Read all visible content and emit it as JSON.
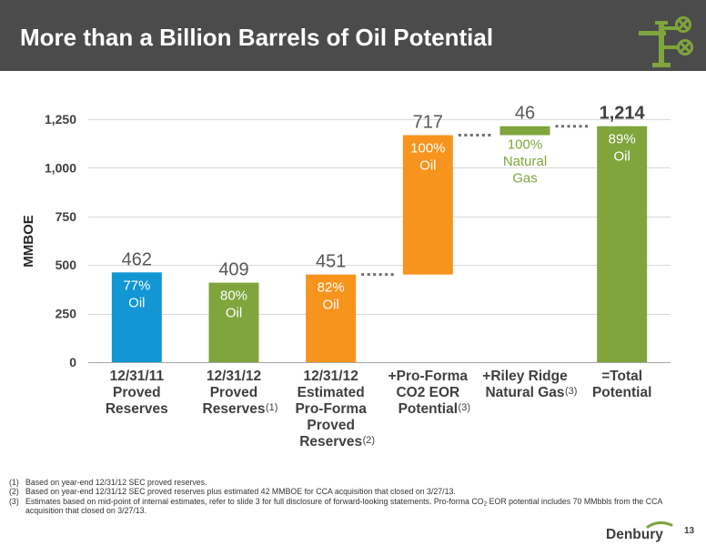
{
  "slide": {
    "title": "More than a Billion Barrels of Oil Potential",
    "header_icon": "pipeline-valve-icon",
    "logo_text": "Denbury",
    "page_number": "13",
    "colors": {
      "header_background": "#4b4b4b",
      "title_text": "#ffffff",
      "accent_green": "#7fa53c"
    }
  },
  "chart_data": {
    "type": "bar",
    "subtype": "waterfall",
    "ylabel": "MMBOE",
    "ylim": [
      0,
      1250
    ],
    "yticks": [
      0,
      250,
      500,
      750,
      1000,
      1250
    ],
    "ytick_labels": [
      "0",
      "250",
      "500",
      "750",
      "1,000",
      "1,250"
    ],
    "grid": true,
    "legend": "none",
    "categories": [
      {
        "lines": [
          "12/31/11",
          "Proved",
          "Reserves"
        ]
      },
      {
        "lines": [
          "12/31/12",
          "Proved",
          "Reserves"
        ],
        "note": "(1)"
      },
      {
        "lines": [
          "12/31/12",
          "Estimated",
          "Pro-Forma",
          "Proved",
          "Reserves"
        ],
        "note": "(2)"
      },
      {
        "lines": [
          "+Pro-Forma",
          "CO2 EOR",
          "Potential"
        ],
        "note": "(3)"
      },
      {
        "lines": [
          "+Riley Ridge",
          "Natural Gas"
        ],
        "note": "(3)"
      },
      {
        "lines": [
          "=Total",
          "Potential"
        ]
      }
    ],
    "values": [
      462,
      409,
      451,
      717,
      46,
      1214
    ],
    "value_labels": [
      "462",
      "409",
      "451",
      "717",
      "46",
      "1,214"
    ],
    "bar_kind": [
      "total",
      "total",
      "total",
      "increment",
      "increment",
      "total"
    ],
    "colors": [
      "#1296d4",
      "#7fa53c",
      "#f7941d",
      "#f7941d",
      "#7fa53c",
      "#7fa53c"
    ],
    "composition": [
      {
        "lines": [
          "77%",
          "Oil"
        ],
        "position": "inside"
      },
      {
        "lines": [
          "80%",
          "Oil"
        ],
        "position": "inside"
      },
      {
        "lines": [
          "82%",
          "Oil"
        ],
        "position": "inside"
      },
      {
        "lines": [
          "100%",
          "Oil"
        ],
        "position": "inside"
      },
      {
        "lines": [
          "100%",
          "Natural",
          "Gas"
        ],
        "position": "below"
      },
      {
        "lines": [
          "89%",
          "Oil"
        ],
        "position": "inside"
      }
    ],
    "emphasized": [
      false,
      false,
      false,
      false,
      false,
      true
    ]
  },
  "footnotes": [
    {
      "marker": "(1)",
      "text": "Based on year-end 12/31/12 SEC proved reserves."
    },
    {
      "marker": "(2)",
      "text": "Based on year-end 12/31/12 SEC proved reserves plus estimated 42 MMBOE for CCA acquisition that closed on 3/27/13."
    },
    {
      "marker": "(3)",
      "text": "Estimates based on mid-point of internal estimates, refer to slide 3 for full disclosure of forward-looking statements. Pro-forma CO",
      "sub": "2",
      "text_after": " EOR potential includes 70 MMbbls from the CCA acquisition that closed on 3/27/13."
    }
  ]
}
